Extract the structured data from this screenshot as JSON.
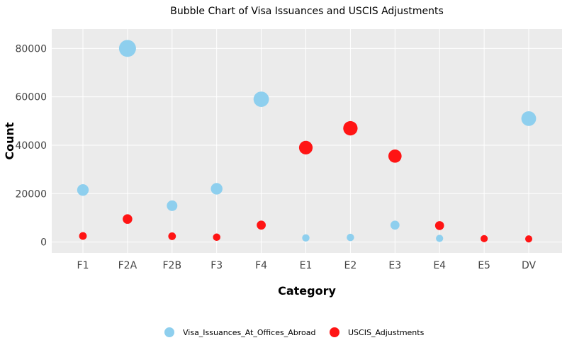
{
  "chart_data": {
    "type": "scatter",
    "title": "Bubble Chart of Visa Issuances and USCIS Adjustments",
    "xlabel": "Category",
    "ylabel": "Count",
    "categories": [
      "F1",
      "F2A",
      "F2B",
      "F3",
      "F4",
      "E1",
      "E2",
      "E3",
      "E4",
      "E5",
      "DV"
    ],
    "ylim": [
      -4500,
      88000
    ],
    "yticks": [
      0,
      20000,
      40000,
      60000,
      80000
    ],
    "ytick_labels": [
      "0",
      "20000",
      "40000",
      "60000",
      "80000"
    ],
    "grid": true,
    "legend_position": "bottom",
    "background_color": "#ebebeb",
    "series": [
      {
        "name": "Visa_Issuances_At_Offices_Abroad",
        "color": "#8ecfee",
        "values": [
          21500,
          80000,
          15000,
          22000,
          59000,
          1700,
          1900,
          7000,
          1500,
          null,
          51000
        ]
      },
      {
        "name": "USCIS_Adjustments",
        "color": "#ff1414",
        "values": [
          2500,
          9500,
          2400,
          2000,
          7000,
          39000,
          47000,
          35500,
          6800,
          1400,
          1300
        ]
      }
    ]
  }
}
